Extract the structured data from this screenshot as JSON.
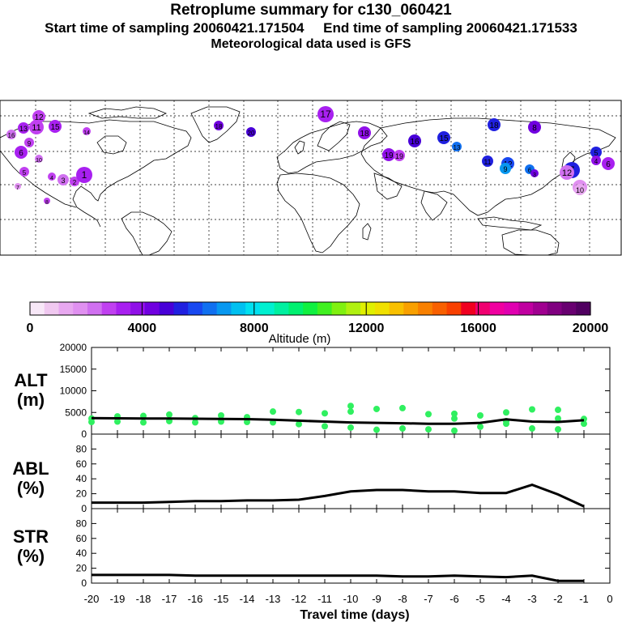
{
  "header": {
    "title": "Retroplume summary for c130_060421",
    "start_label": "Start time of sampling 20060421.171504",
    "end_label": "End time of sampling 20060421.171533",
    "met_label": "Meteorological data used is GFS"
  },
  "colorbar": {
    "tick_labels": [
      "0",
      "4000",
      "8000",
      "12000",
      "16000",
      "20000"
    ],
    "label": "Altitude (m)",
    "colors": [
      "#f8e8f8",
      "#f0c8f0",
      "#e8a8f0",
      "#e090f0",
      "#d070f0",
      "#c040f0",
      "#a820f0",
      "#9010e8",
      "#7000e0",
      "#4800d8",
      "#2020e0",
      "#1848f0",
      "#1070f0",
      "#0898f0",
      "#00c0f0",
      "#00e0f0",
      "#00f0d0",
      "#00f0a0",
      "#00f070",
      "#10f040",
      "#40f020",
      "#80f010",
      "#b0f010",
      "#e0f000",
      "#f0e000",
      "#f8c000",
      "#f8a000",
      "#f88000",
      "#f86000",
      "#f84000",
      "#f00020",
      "#f00070",
      "#f000a0",
      "#e000b0",
      "#c000a0",
      "#a00090",
      "#800080",
      "#680070",
      "#500060"
    ]
  },
  "map": {
    "markers": [
      {
        "label": "12",
        "color": "#c040f0"
      },
      {
        "label": "11",
        "color": "#c040f0"
      },
      {
        "label": "13",
        "color": "#a820f0"
      },
      {
        "label": "15",
        "color": "#a820f0"
      },
      {
        "label": "14",
        "color": "#c040f0"
      },
      {
        "label": "16",
        "color": "#d070f0"
      },
      {
        "label": "9",
        "color": "#c040f0"
      },
      {
        "label": "10",
        "color": "#d070f0"
      },
      {
        "label": "7",
        "color": "#e090f0"
      },
      {
        "label": "8",
        "color": "#c040f0"
      },
      {
        "label": "6",
        "color": "#a820f0"
      },
      {
        "label": "5",
        "color": "#c040f0"
      },
      {
        "label": "4",
        "color": "#c040f0"
      },
      {
        "label": "3",
        "color": "#d070f0"
      },
      {
        "label": "2",
        "color": "#c040f0"
      },
      {
        "label": "1",
        "color": "#a820f0"
      },
      {
        "label": "18",
        "color": "#7000e0"
      },
      {
        "label": "20",
        "color": "#4800d8"
      },
      {
        "label": "19",
        "color": "#9010e8"
      },
      {
        "label": "17",
        "color": "#a820f0"
      },
      {
        "label": "18",
        "color": "#9010e8"
      },
      {
        "label": "19",
        "color": "#c040f0"
      },
      {
        "label": "16",
        "color": "#4800d8"
      },
      {
        "label": "15",
        "color": "#2020e0"
      },
      {
        "label": "13",
        "color": "#1070f0"
      },
      {
        "label": "18",
        "color": "#2020e0"
      },
      {
        "label": "12",
        "color": "#1848f0"
      },
      {
        "label": "11",
        "color": "#2020e0"
      },
      {
        "label": "9",
        "color": "#0898f0"
      },
      {
        "label": "6",
        "color": "#1070f0"
      },
      {
        "label": "8",
        "color": "#7000e0"
      },
      {
        "label": "7",
        "color": "#2020e0"
      },
      {
        "label": "5",
        "color": "#2020e0"
      },
      {
        "label": "12",
        "color": "#d070f0"
      },
      {
        "label": "14",
        "color": "#e090f0"
      },
      {
        "label": "10",
        "color": "#e8a8f0"
      },
      {
        "label": "6",
        "color": "#a820f0"
      },
      {
        "label": "4",
        "color": "#9010e8"
      },
      {
        "label": "3",
        "color": "#7000e0"
      }
    ]
  },
  "labels": {
    "alt_title": "ALT",
    "alt_unit": "(m)",
    "abl_title": "ABL",
    "abl_unit": "(%)",
    "str_title": "STR",
    "str_unit": "(%)",
    "xlabel": "Travel time (days)"
  },
  "chart_data": [
    {
      "type": "line",
      "name": "ALT",
      "ylabel": "ALT (m)",
      "ylim": [
        0,
        20000
      ],
      "yticks": [
        "0",
        "5000",
        "10000",
        "15000",
        "20000"
      ],
      "xlim": [
        -20,
        0
      ],
      "x": [
        -20,
        -19,
        -18,
        -17,
        -16,
        -15,
        -14,
        -13,
        -12,
        -11,
        -10,
        -9,
        -8,
        -7,
        -6,
        -5,
        -4,
        -3,
        -2,
        -1
      ],
      "values": [
        3700,
        3650,
        3600,
        3600,
        3550,
        3500,
        3450,
        3300,
        3100,
        2900,
        2700,
        2600,
        2500,
        2400,
        2400,
        2600,
        3400,
        2900,
        2800,
        3200
      ],
      "scatter": [
        {
          "x": -20,
          "y": 3600
        },
        {
          "x": -20,
          "y": 2800
        },
        {
          "x": -19,
          "y": 4100
        },
        {
          "x": -19,
          "y": 2900
        },
        {
          "x": -18,
          "y": 4200
        },
        {
          "x": -18,
          "y": 2700
        },
        {
          "x": -17,
          "y": 4500
        },
        {
          "x": -17,
          "y": 3000
        },
        {
          "x": -16,
          "y": 3700
        },
        {
          "x": -16,
          "y": 2700
        },
        {
          "x": -15,
          "y": 4300
        },
        {
          "x": -15,
          "y": 2900
        },
        {
          "x": -14,
          "y": 3900
        },
        {
          "x": -14,
          "y": 2800
        },
        {
          "x": -13,
          "y": 5200
        },
        {
          "x": -13,
          "y": 2700
        },
        {
          "x": -12,
          "y": 5100
        },
        {
          "x": -12,
          "y": 2300
        },
        {
          "x": -11,
          "y": 4800
        },
        {
          "x": -11,
          "y": 1800
        },
        {
          "x": -10,
          "y": 5200
        },
        {
          "x": -10,
          "y": 1500
        },
        {
          "x": -10,
          "y": 6500
        },
        {
          "x": -9,
          "y": 5800
        },
        {
          "x": -9,
          "y": 1000
        },
        {
          "x": -8,
          "y": 6000
        },
        {
          "x": -8,
          "y": 1300
        },
        {
          "x": -7,
          "y": 4600
        },
        {
          "x": -7,
          "y": 1100
        },
        {
          "x": -6,
          "y": 4700
        },
        {
          "x": -6,
          "y": 800
        },
        {
          "x": -6,
          "y": 3600
        },
        {
          "x": -5,
          "y": 4300
        },
        {
          "x": -5,
          "y": 1700
        },
        {
          "x": -4,
          "y": 3000
        },
        {
          "x": -4,
          "y": 2400
        },
        {
          "x": -4,
          "y": 5000
        },
        {
          "x": -3,
          "y": 5700
        },
        {
          "x": -3,
          "y": 1300
        },
        {
          "x": -2,
          "y": 3600
        },
        {
          "x": -2,
          "y": 1100
        },
        {
          "x": -2,
          "y": 5600
        },
        {
          "x": -1,
          "y": 3500
        },
        {
          "x": -1,
          "y": 2400
        }
      ]
    },
    {
      "type": "line",
      "name": "ABL",
      "ylabel": "ABL (%)",
      "ylim": [
        0,
        100
      ],
      "yticks": [
        "0",
        "20",
        "40",
        "60",
        "80"
      ],
      "xlim": [
        -20,
        0
      ],
      "x": [
        -20,
        -19,
        -18,
        -17,
        -16,
        -15,
        -14,
        -13,
        -12,
        -11,
        -10,
        -9,
        -8,
        -7,
        -6,
        -5,
        -4,
        -3,
        -2,
        -1
      ],
      "values": [
        8,
        8,
        8,
        9,
        10,
        10,
        11,
        11,
        12,
        17,
        23,
        25,
        25,
        23,
        23,
        21,
        21,
        32,
        19,
        3
      ]
    },
    {
      "type": "line",
      "name": "STR",
      "ylabel": "STR (%)",
      "ylim": [
        0,
        100
      ],
      "yticks": [
        "0",
        "20",
        "40",
        "60",
        "80"
      ],
      "xlim": [
        -20,
        0
      ],
      "xticks": [
        "-20",
        "-19",
        "-18",
        "-17",
        "-16",
        "-15",
        "-14",
        "-13",
        "-12",
        "-11",
        "-10",
        "-9",
        "-8",
        "-7",
        "-6",
        "-5",
        "-4",
        "-3",
        "-2",
        "-1",
        "0"
      ],
      "x": [
        -20,
        -19,
        -18,
        -17,
        -16,
        -15,
        -14,
        -13,
        -12,
        -11,
        -10,
        -9,
        -8,
        -7,
        -6,
        -5,
        -4,
        -3,
        -2,
        -1
      ],
      "values": [
        11,
        11,
        11,
        11,
        10,
        10,
        10,
        10,
        10,
        10,
        10,
        10,
        9,
        9,
        10,
        9,
        8,
        10,
        3,
        3
      ]
    }
  ]
}
